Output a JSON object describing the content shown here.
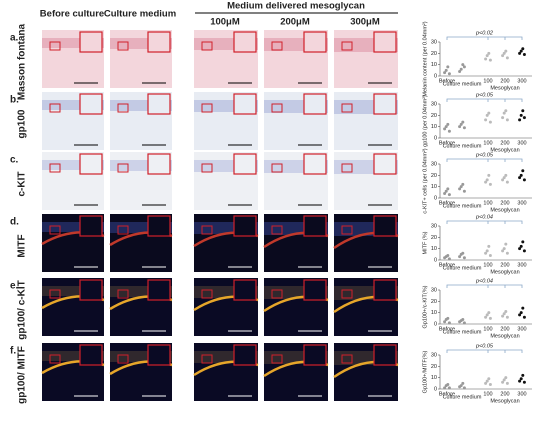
{
  "header": {
    "col1": "Before culture",
    "col2": "Culture medium",
    "group": "Medium delivered mesoglycan",
    "dose1": "100μM",
    "dose2": "200μM",
    "dose3": "300μM"
  },
  "rows": [
    {
      "letter": "a.",
      "label": "Masson fontana"
    },
    {
      "letter": "b.",
      "label": "gp100"
    },
    {
      "letter": "c.",
      "label": "c-KIT"
    },
    {
      "letter": "d.",
      "label": "MITF"
    },
    {
      "letter": "e.",
      "label": "gp100/ c-KIT"
    },
    {
      "letter": "f.",
      "label": "gp100/ MITF"
    }
  ],
  "plot_categories": [
    "Before",
    "Culture medium",
    "100",
    "200",
    "300"
  ],
  "plot_group_label": "Mesoglycan",
  "plots": [
    {
      "type": "scatter",
      "y_label": "Melanin content (per 0.04mm²)",
      "p_label": "p<0.02",
      "ylim": [
        0,
        30
      ],
      "yticks": [
        0,
        10,
        20,
        30
      ],
      "values": [
        [
          3,
          5,
          8,
          2
        ],
        [
          4,
          6,
          10,
          8
        ],
        [
          15,
          18,
          20,
          14
        ],
        [
          18,
          20,
          22,
          16
        ],
        [
          20,
          22,
          24,
          19
        ]
      ]
    },
    {
      "type": "scatter",
      "y_label": "gp100 (per 0.04mm²)",
      "p_label": "p<0.05",
      "ylim": [
        0,
        30
      ],
      "yticks": [
        0,
        10,
        20,
        30
      ],
      "values": [
        [
          8,
          10,
          12,
          6
        ],
        [
          10,
          12,
          14,
          9
        ],
        [
          16,
          20,
          22,
          14
        ],
        [
          18,
          22,
          24,
          16
        ],
        [
          16,
          20,
          24,
          18
        ]
      ]
    },
    {
      "type": "scatter",
      "y_label": "c-KIT+ cells (per 0.04mm²)",
      "p_label": "p<0.05",
      "ylim": [
        0,
        30
      ],
      "yticks": [
        0,
        10,
        20,
        30
      ],
      "values": [
        [
          4,
          6,
          8,
          3
        ],
        [
          8,
          10,
          12,
          6
        ],
        [
          14,
          16,
          20,
          12
        ],
        [
          16,
          18,
          20,
          14
        ],
        [
          18,
          20,
          24,
          16
        ]
      ]
    },
    {
      "type": "scatter",
      "y_label": "MITF (%)",
      "p_label": "p<0.04",
      "ylim": [
        0,
        30
      ],
      "yticks": [
        0,
        10,
        20,
        30
      ],
      "values": [
        [
          2,
          3,
          4,
          1
        ],
        [
          3,
          5,
          6,
          2
        ],
        [
          6,
          8,
          12,
          4
        ],
        [
          8,
          10,
          14,
          6
        ],
        [
          10,
          12,
          16,
          8
        ]
      ]
    },
    {
      "type": "scatter",
      "y_label": "Gp100+/c-KIT(%)",
      "p_label": "p<0.04",
      "ylim": [
        0,
        30
      ],
      "yticks": [
        0,
        10,
        20,
        30
      ],
      "values": [
        [
          2,
          4,
          5,
          1
        ],
        [
          2,
          3,
          4,
          1
        ],
        [
          6,
          8,
          10,
          5
        ],
        [
          7,
          9,
          11,
          6
        ],
        [
          8,
          10,
          14,
          6
        ]
      ]
    },
    {
      "type": "scatter",
      "y_label": "Gp100+/MITF(%)",
      "p_label": "p<0.05",
      "ylim": [
        0,
        30
      ],
      "yticks": [
        0,
        10,
        20,
        30
      ],
      "values": [
        [
          1,
          3,
          4,
          1
        ],
        [
          2,
          3,
          5,
          1
        ],
        [
          5,
          7,
          9,
          4
        ],
        [
          6,
          8,
          10,
          5
        ],
        [
          7,
          9,
          12,
          6
        ]
      ]
    }
  ]
}
